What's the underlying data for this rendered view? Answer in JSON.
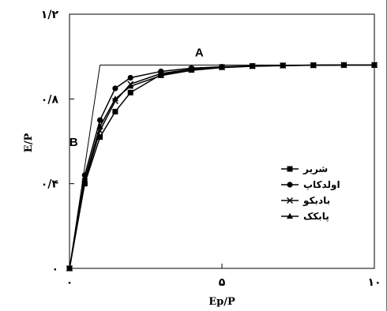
{
  "chart_data": {
    "type": "line",
    "x": [
      0,
      0.5,
      1,
      1.5,
      2,
      3,
      4,
      5,
      6,
      7,
      8,
      9,
      10
    ],
    "series": [
      {
        "name": "شریر",
        "marker": "square",
        "values": [
          0,
          0.4,
          0.62,
          0.74,
          0.83,
          0.915,
          0.94,
          0.95,
          0.955,
          0.958,
          0.959,
          0.96,
          0.96
        ]
      },
      {
        "name": "اولدکاپ",
        "marker": "circle",
        "values": [
          0,
          0.44,
          0.7,
          0.85,
          0.9,
          0.93,
          0.945,
          0.952,
          0.956,
          0.958,
          0.959,
          0.96,
          0.96
        ]
      },
      {
        "name": "بادبکو",
        "marker": "x",
        "values": [
          0,
          0.41,
          0.65,
          0.79,
          0.87,
          0.92,
          0.94,
          0.95,
          0.955,
          0.958,
          0.959,
          0.96,
          0.96
        ]
      },
      {
        "name": "پابکک",
        "marker": "triangle",
        "values": [
          0,
          0.42,
          0.67,
          0.8,
          0.86,
          0.91,
          0.935,
          0.948,
          0.954,
          0.957,
          0.959,
          0.96,
          0.96
        ]
      }
    ],
    "reference_lines": [
      {
        "label": "A",
        "points": [
          [
            1,
            0.96
          ],
          [
            10,
            0.96
          ]
        ]
      },
      {
        "label": "B",
        "points": [
          [
            0,
            0
          ],
          [
            1,
            0.96
          ]
        ]
      }
    ],
    "xlabel": "Ep/P",
    "ylabel": "E/P",
    "xlim": [
      0,
      10
    ],
    "ylim": [
      0,
      1.2
    ],
    "x_ticks": [
      {
        "value": 0,
        "label": "۰"
      },
      {
        "value": 5,
        "label": "۵"
      },
      {
        "value": 10,
        "label": "۱۰"
      }
    ],
    "y_ticks": [
      {
        "value": 0,
        "label": "۰"
      },
      {
        "value": 0.4,
        "label": "۰/۴"
      },
      {
        "value": 0.8,
        "label": "۰/۸"
      },
      {
        "value": 1.2,
        "label": "۱/۲"
      }
    ],
    "grid": false,
    "legend_position": "bottom-right",
    "colors": {
      "lines": "#000000",
      "background": "#ffffff"
    }
  }
}
